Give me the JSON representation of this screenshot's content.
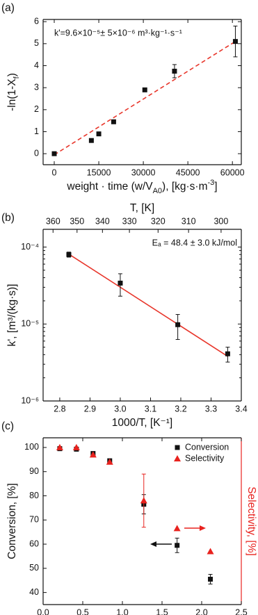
{
  "chart_data": [
    {
      "type": "scatter",
      "label": "(a)",
      "annotation": "k'=9.6×10⁻⁵± 5×10⁻⁶ m³·kg⁻¹·s⁻¹",
      "xlabel": [
        {
          "text": "weight · time (w/V"
        },
        {
          "text": "A0",
          "script": "sub"
        },
        {
          "text": "), [kg·s·m"
        },
        {
          "text": "-3",
          "script": "super"
        },
        {
          "text": "]"
        }
      ],
      "ylabel": [
        {
          "text": "-ln(1-X"
        },
        {
          "text": "f",
          "script": "sub"
        },
        {
          "text": ")"
        }
      ],
      "xlim": [
        -3750,
        63000
      ],
      "xticks": [
        0,
        15000,
        30000,
        45000,
        60000
      ],
      "ylim": [
        -0.5,
        6.1
      ],
      "yticks": [
        0,
        1,
        2,
        3,
        4,
        5,
        6
      ],
      "series": [
        {
          "color": "#111111",
          "marker": "square",
          "x": [
            0,
            12500,
            15000,
            20000,
            30500,
            40500,
            61000
          ],
          "values": [
            0,
            0.6,
            0.9,
            1.45,
            2.9,
            3.75,
            5.1
          ],
          "errors": [
            null,
            null,
            null,
            null,
            null,
            0.3,
            0.7
          ]
        }
      ],
      "fit": {
        "color": "#e8352a",
        "dash": true,
        "x": [
          0,
          61000
        ],
        "values": [
          -0.05,
          5.1
        ]
      }
    },
    {
      "type": "scatter",
      "label": "(b)",
      "annotation": "Eₐ = 48.4 ± 3.0 kJ/mol",
      "xlabel": [
        {
          "text": "1000/T, [K⁻¹]"
        }
      ],
      "ylabel": [
        {
          "text": "k', [m³/(kg·s)]"
        }
      ],
      "x2label": [
        {
          "text": "T, [K]"
        }
      ],
      "xlim": [
        2.745,
        3.4
      ],
      "xticks": [
        2.8,
        2.9,
        {
          "value": 3,
          "label": "3.0"
        },
        3.1,
        3.2,
        3.3,
        3.4
      ],
      "x2lim": [
        364.3,
        294.1
      ],
      "x2scale": "reciprocal",
      "x2ticks": [
        360,
        350,
        340,
        330,
        320,
        310,
        300
      ],
      "ylog": true,
      "ylim": [
        1e-06,
        0.00017
      ],
      "yticks": [
        {
          "value": 1e-06,
          "label": "10⁻⁶"
        },
        {
          "value": 1e-05,
          "label": "10⁻⁵"
        },
        {
          "value": 0.0001,
          "label": "10⁻⁴"
        }
      ],
      "series": [
        {
          "color": "#111111",
          "marker": "square",
          "x": [
            2.83,
            3.0,
            3.19,
            3.355
          ],
          "values": [
            8e-05,
            3.4e-05,
            9.8e-06,
            4.1e-06
          ],
          "errors": [
            6e-06,
            1.1e-05,
            3.5e-06,
            9e-07
          ]
        }
      ],
      "fit": {
        "color": "#e8352a",
        "dash": false,
        "x": [
          2.83,
          3.355
        ],
        "values": [
          8.1e-05,
          3.8e-06
        ]
      }
    },
    {
      "type": "scatter",
      "label": "(c)",
      "xlabel": [
        {
          "text": "Liquid Flowrate, [ml/min]"
        }
      ],
      "ylabel": [
        {
          "text": "Conversion, [%]"
        }
      ],
      "y2label": [
        {
          "text": "Selectivity, [%]"
        }
      ],
      "y2color": "#e8221e",
      "xlim": [
        0,
        2.5
      ],
      "xticks": [
        {
          "value": 0,
          "label": "0.0"
        },
        0.5,
        {
          "value": 1,
          "label": "1.0"
        },
        1.5,
        {
          "value": 2,
          "label": "2.0"
        },
        2.5
      ],
      "ylim": [
        35,
        104
      ],
      "yticks": [
        40,
        50,
        60,
        70,
        80,
        90,
        100
      ],
      "y2lim": [
        35,
        104
      ],
      "legend": "top-right",
      "series": [
        {
          "name": "Conversion",
          "color": "#111111",
          "marker": "square",
          "x": [
            0.21,
            0.42,
            0.63,
            0.84,
            1.27,
            1.69,
            2.11
          ],
          "values": [
            99.5,
            99.3,
            97.5,
            94.5,
            76.5,
            59.5,
            45.5
          ],
          "errors": [
            0.8,
            0.8,
            0.8,
            0.8,
            4,
            3,
            2
          ]
        },
        {
          "name": "Selectivity",
          "color": "#e8221e",
          "marker": "triangle",
          "axis": "y2",
          "x": [
            0.21,
            0.42,
            0.63,
            0.84,
            1.27,
            1.69,
            2.11
          ],
          "values": [
            100,
            100,
            97,
            94,
            78,
            66.5,
            57
          ],
          "errors": [
            null,
            null,
            null,
            null,
            11,
            null,
            null
          ]
        }
      ]
    }
  ]
}
